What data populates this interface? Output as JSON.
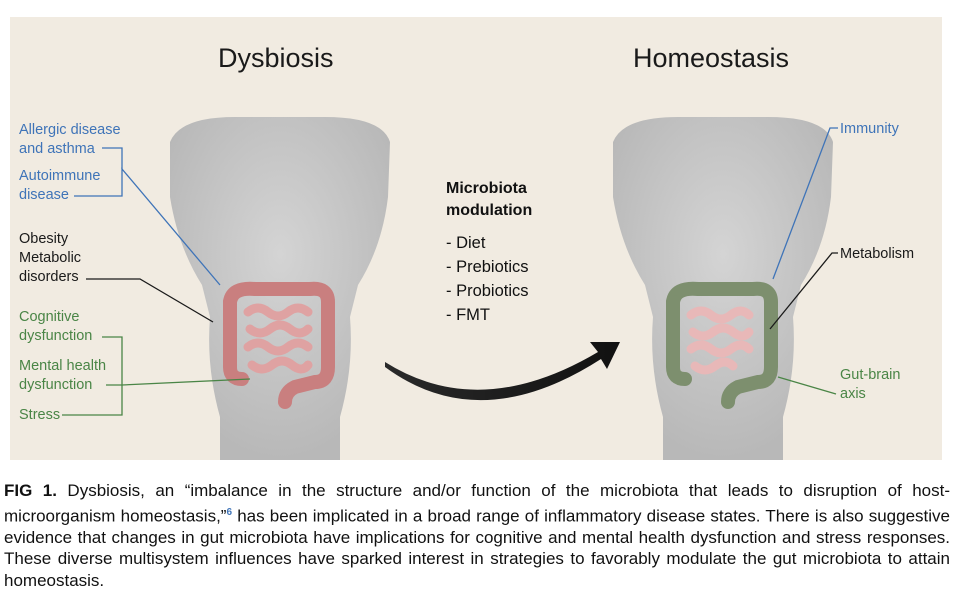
{
  "figure": {
    "left_title": "Dysbiosis",
    "right_title": "Homeostasis",
    "left_labels": {
      "allergic": [
        "Allergic disease",
        "and asthma"
      ],
      "autoimmune": [
        "Autoimmune",
        "disease"
      ],
      "obesity": [
        "Obesity",
        "Metabolic",
        "disorders"
      ],
      "cognitive": [
        "Cognitive",
        "dysfunction"
      ],
      "mental": [
        "Mental health",
        "dysfunction"
      ],
      "stress": "Stress"
    },
    "center": {
      "heading": [
        "Microbiota",
        "modulation"
      ],
      "items": [
        "- Diet",
        "- Prebiotics",
        "- Probiotics",
        "- FMT"
      ]
    },
    "right_labels": {
      "immunity": "Immunity",
      "metabolism": "Metabolism",
      "gut_brain": [
        "Gut-brain",
        "axis"
      ]
    },
    "colors": {
      "panel_bg": "#f1ebe1",
      "blue": "#3f74b8",
      "green": "#4a8546",
      "black": "#1a1a1a",
      "body": "#c8c8c8",
      "intestine_dysbiosis": "#d99090",
      "colon_homeostasis": "#7d8f6e"
    }
  },
  "caption": {
    "label": "FIG 1.",
    "text_part1": " Dysbiosis, an “imbalance in the structure and/or function of the microbiota that leads to disruption of host-microorganism homeostasis,”",
    "ref": "6",
    "text_part2": " has been implicated in a broad range of inflammatory disease states. There is also suggestive evidence that changes in gut microbiota have implications for cognitive and mental health dysfunction and stress responses. These diverse multisystem influences have sparked interest in strategies to favorably modulate the gut microbiota to attain homeostasis."
  }
}
